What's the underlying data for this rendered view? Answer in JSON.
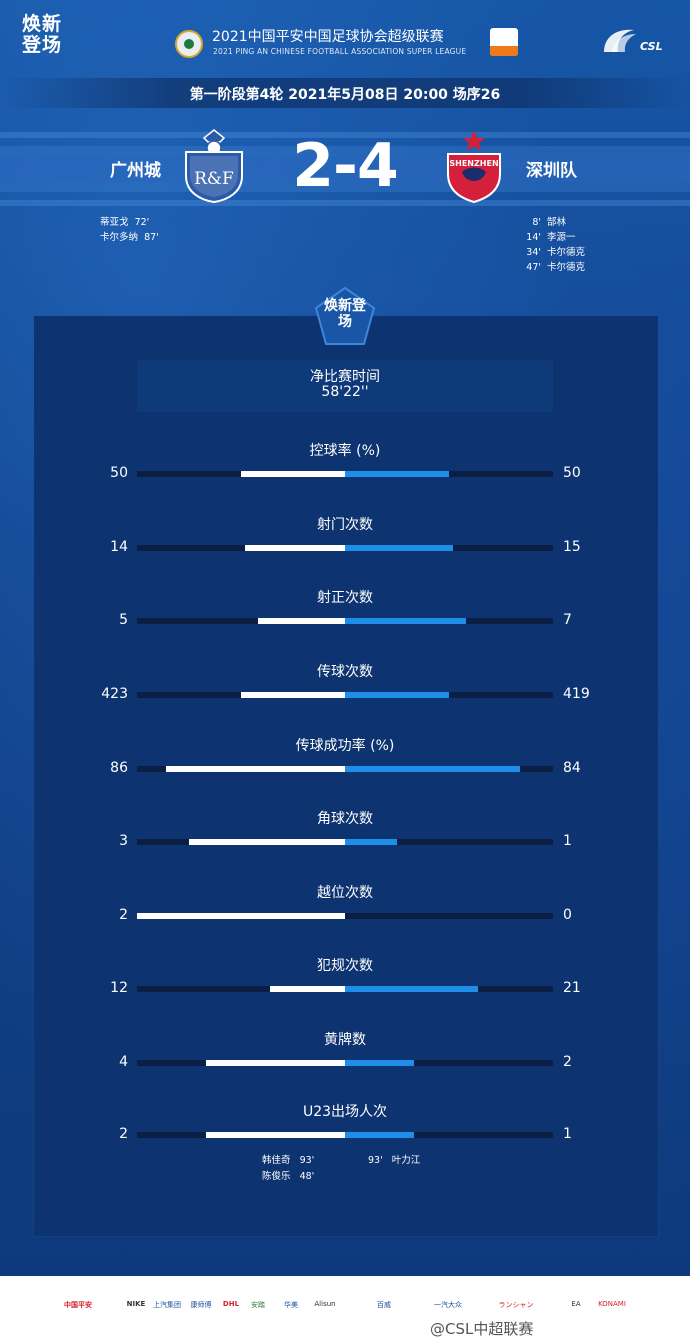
{
  "header": {
    "brand": "焕新登场",
    "league_title": "2021中国平安中国足球协会超级联赛",
    "league_subtitle": "2021 PING AN CHINESE FOOTBALL ASSOCIATION SUPER LEAGUE",
    "csl_text": "CSL"
  },
  "match": {
    "round_info": "第一阶段第4轮  2021年5月08日 20:00 场序26",
    "home_team": "广州城",
    "away_team": "深圳队",
    "home_crest_text": "R&F",
    "away_crest_text": "SHENZHEN",
    "score": "2-4",
    "home_goals": [
      {
        "player": "蒂亚戈",
        "minute": "72'"
      },
      {
        "player": "卡尔多纳",
        "minute": "87'"
      }
    ],
    "away_goals": [
      {
        "minute": "8'",
        "player": "郜林"
      },
      {
        "minute": "14'",
        "player": "李源一"
      },
      {
        "minute": "34'",
        "player": "卡尔德克"
      },
      {
        "minute": "47'",
        "player": "卡尔德克"
      }
    ]
  },
  "panel": {
    "badge": "焕新登场",
    "time_label": "净比赛时间",
    "time_value": "58'22''"
  },
  "stats": [
    {
      "label": "控球率 (%)",
      "home": "50",
      "away": "50",
      "home_frac": 0.5,
      "away_frac": 0.5
    },
    {
      "label": "射门次数",
      "home": "14",
      "away": "15",
      "home_frac": 0.48,
      "away_frac": 0.52
    },
    {
      "label": "射正次数",
      "home": "5",
      "away": "7",
      "home_frac": 0.42,
      "away_frac": 0.58
    },
    {
      "label": "传球次数",
      "home": "423",
      "away": "419",
      "home_frac": 0.5,
      "away_frac": 0.5
    },
    {
      "label": "传球成功率 (%)",
      "home": "86",
      "away": "84",
      "home_frac": 0.86,
      "away_frac": 0.84
    },
    {
      "label": "角球次数",
      "home": "3",
      "away": "1",
      "home_frac": 0.75,
      "away_frac": 0.25
    },
    {
      "label": "越位次数",
      "home": "2",
      "away": "0",
      "home_frac": 1.0,
      "away_frac": 0.0
    },
    {
      "label": "犯规次数",
      "home": "12",
      "away": "21",
      "home_frac": 0.36,
      "away_frac": 0.64
    },
    {
      "label": "黄牌数",
      "home": "4",
      "away": "2",
      "home_frac": 0.67,
      "away_frac": 0.33
    },
    {
      "label": "U23出场人次",
      "home": "2",
      "away": "1",
      "home_frac": 0.67,
      "away_frac": 0.33
    }
  ],
  "u23": {
    "home": [
      {
        "player": "韩佳奇",
        "minute": "93'"
      },
      {
        "player": "陈俊乐",
        "minute": "48'"
      }
    ],
    "away": [
      {
        "minute": "93'",
        "player": "叶力江"
      }
    ]
  },
  "footer": {
    "sponsors": [
      "中国平安",
      "NIKE",
      "上汽集团",
      "康师傅",
      "DHL",
      "安踏",
      "华美",
      "Alisun",
      "百威",
      "一汽大众",
      "ランシャン",
      "EA",
      "KONAMI"
    ],
    "watermark": "@CSL中超联赛"
  },
  "colors": {
    "background": "#0f3e84",
    "panel": "#0d3470",
    "home_bar": "#ffffff",
    "away_bar": "#1e8ee8",
    "track": "#0b1f45"
  }
}
